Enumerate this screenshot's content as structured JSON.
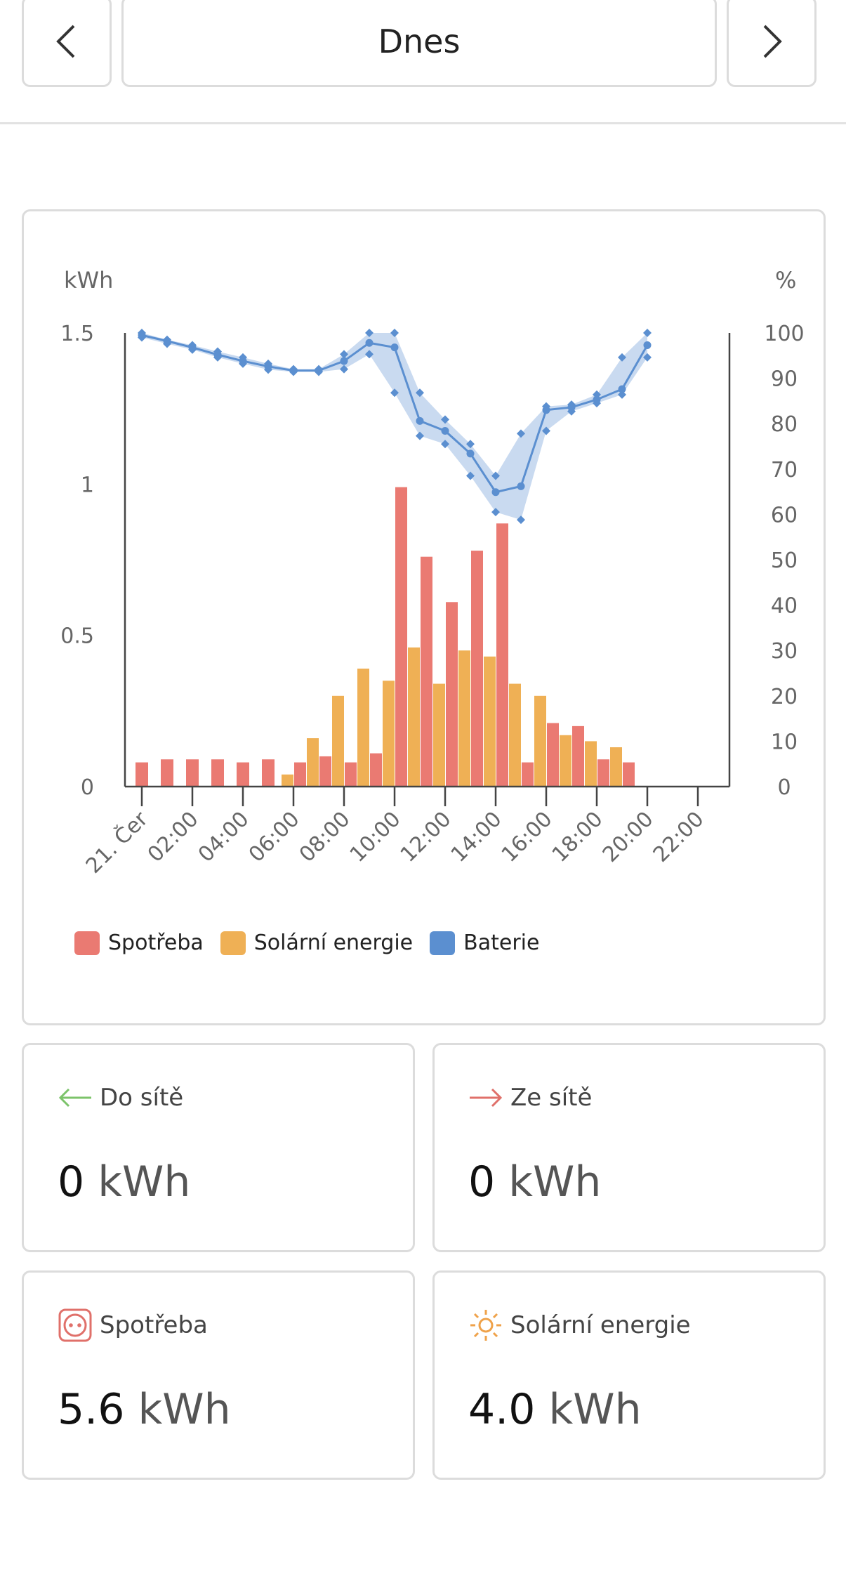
{
  "header": {
    "date_label": "Dnes"
  },
  "chart_data": {
    "type": "bar",
    "y_left_label": "kWh",
    "y_right_label": "%",
    "y_left_ticks": [
      "1.5",
      "1",
      "0.5",
      "0"
    ],
    "y_right_ticks": [
      "100",
      "90",
      "80",
      "70",
      "60",
      "50",
      "40",
      "30",
      "20",
      "10",
      "0"
    ],
    "ylim_left": [
      0,
      1.5
    ],
    "ylim_right": [
      0,
      100
    ],
    "x_tick_labels": [
      "21. Čer",
      "02:00",
      "04:00",
      "06:00",
      "08:00",
      "10:00",
      "12:00",
      "14:00",
      "16:00",
      "18:00",
      "20:00",
      "22:00"
    ],
    "hours": [
      0,
      1,
      2,
      3,
      4,
      5,
      6,
      7,
      8,
      9,
      10,
      11,
      12,
      13,
      14,
      15,
      16,
      17,
      18,
      19
    ],
    "series": [
      {
        "name": "Spotřeba",
        "color": "#ea7a72",
        "values": [
          0.08,
          0.09,
          0.09,
          0.09,
          0.08,
          0.09,
          0.08,
          0.1,
          0.08,
          0.11,
          0.99,
          0.76,
          0.61,
          0.78,
          0.87,
          0.08,
          0.21,
          0.2,
          0.09,
          0.08
        ]
      },
      {
        "name": "Solární energie",
        "color": "#efb055",
        "values": [
          0,
          0,
          0,
          0,
          0,
          0,
          0.04,
          0.16,
          0.3,
          0.39,
          0.35,
          0.46,
          0.34,
          0.45,
          0.43,
          0.34,
          0.3,
          0.17,
          0.15,
          0.13
        ]
      },
      {
        "name": "Baterie",
        "color": "#5b8fd0",
        "avg": [
          99.5,
          98.2,
          96.8,
          95.2,
          93.8,
          92.6,
          91.7,
          91.7,
          93.8,
          97.8,
          96.8,
          80.6,
          78.4,
          73.4,
          64.9,
          66.2,
          83.0,
          83.6,
          85.3,
          87.6,
          97.3
        ],
        "max": [
          100,
          98.5,
          97.3,
          95.9,
          94.6,
          93.2,
          92.0,
          92.0,
          95.3,
          100,
          100,
          86.8,
          80.9,
          75.5,
          68.5,
          77.8,
          83.8,
          84.2,
          86.4,
          94.6,
          100
        ],
        "min": [
          99,
          97.6,
          96.3,
          94.6,
          93.2,
          91.9,
          91.4,
          91.4,
          92.0,
          95.3,
          86.8,
          77.3,
          75.5,
          68.5,
          60.5,
          58.8,
          78.4,
          82.7,
          84.5,
          86.4,
          94.6
        ]
      }
    ]
  },
  "cards": {
    "to_grid": {
      "label": "Do sítě",
      "value": "0",
      "unit": "kWh",
      "icon": "arrow-left-icon",
      "color": "#7cc36a"
    },
    "from_grid": {
      "label": "Ze sítě",
      "value": "0",
      "unit": "kWh",
      "icon": "arrow-right-icon",
      "color": "#e0706a"
    },
    "consumption": {
      "label": "Spotřeba",
      "value": "5.6",
      "unit": "kWh",
      "icon": "socket-icon",
      "color": "#e0706a"
    },
    "solar": {
      "label": "Solární energie",
      "value": "4.0",
      "unit": "kWh",
      "icon": "sun-icon",
      "color": "#efa24a"
    }
  }
}
